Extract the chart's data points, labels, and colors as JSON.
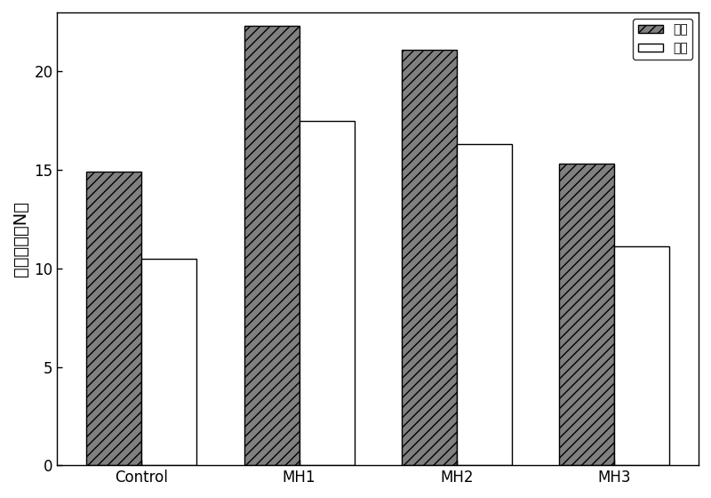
{
  "categories": [
    "Control",
    "MH1",
    "MH2",
    "MH3"
  ],
  "dry_values": [
    14.9,
    22.3,
    21.1,
    15.3
  ],
  "wet_values": [
    10.5,
    17.5,
    16.3,
    11.1
  ],
  "dry_color": "#808080",
  "wet_color": "#ffffff",
  "dry_hatch": "///",
  "wet_hatch": "",
  "ylabel": "断裂强度（N）",
  "ylim": [
    0,
    23
  ],
  "yticks": [
    0,
    5,
    10,
    15,
    20
  ],
  "legend_dry": "干态",
  "legend_wet": "湿态",
  "bar_width": 0.35,
  "bar_edge_color": "#000000",
  "background_color": "#ffffff",
  "ylabel_fontsize": 14,
  "tick_fontsize": 12,
  "legend_fontsize": 12
}
